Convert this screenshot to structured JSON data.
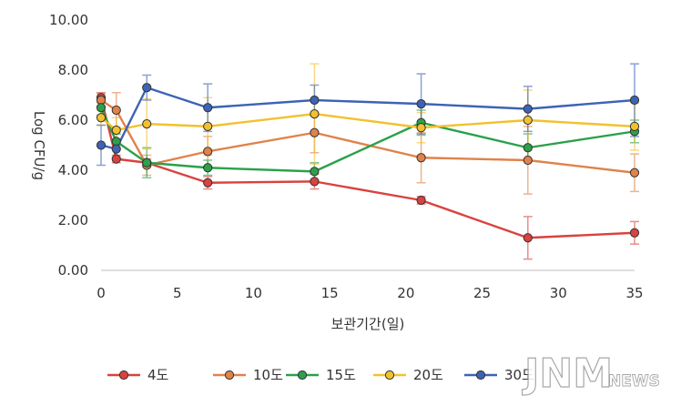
{
  "chart_data": {
    "type": "line",
    "title": "",
    "xlabel": "보관기간(일)",
    "ylabel": "Log CFU/g",
    "xlim": [
      0,
      35
    ],
    "ylim": [
      0,
      10
    ],
    "x_ticks": [
      0,
      5,
      10,
      15,
      20,
      25,
      30,
      35
    ],
    "y_ticks": [
      "0.00",
      "2.00",
      "4.00",
      "6.00",
      "8.00",
      "10.00"
    ],
    "grid": false,
    "legend_position": "bottom",
    "series": [
      {
        "name": "4도",
        "color": "#d9423f",
        "x": [
          0,
          1,
          3,
          7,
          14,
          21,
          28,
          35
        ],
        "y": [
          6.9,
          4.45,
          4.3,
          3.5,
          3.55,
          2.8,
          1.3,
          1.5
        ],
        "err": [
          0.2,
          0.15,
          0.15,
          0.25,
          0.3,
          0.15,
          0.85,
          0.45
        ]
      },
      {
        "name": "10도",
        "color": "#e0824a",
        "x": [
          0,
          1,
          3,
          7,
          14,
          21,
          28,
          35
        ],
        "y": [
          6.8,
          6.4,
          4.2,
          4.75,
          5.5,
          4.5,
          4.4,
          3.9
        ],
        "err": [
          0.25,
          0.7,
          0.4,
          0.6,
          0.8,
          1.0,
          1.35,
          0.75
        ]
      },
      {
        "name": "15도",
        "color": "#2aa14a",
        "x": [
          0,
          1,
          3,
          7,
          14,
          21,
          28,
          35
        ],
        "y": [
          6.5,
          5.15,
          4.3,
          4.1,
          3.95,
          5.9,
          4.9,
          5.55
        ],
        "err": [
          0.3,
          0.3,
          0.6,
          0.3,
          0.35,
          0.5,
          0.55,
          0.45
        ]
      },
      {
        "name": "20도",
        "color": "#f2c12e",
        "x": [
          0,
          1,
          3,
          7,
          14,
          21,
          28,
          35
        ],
        "y": [
          6.1,
          5.6,
          5.85,
          5.75,
          6.25,
          5.7,
          6.0,
          5.75
        ],
        "err": [
          0.3,
          0.5,
          1.0,
          1.15,
          2.0,
          0.6,
          1.2,
          0.95
        ]
      },
      {
        "name": "30도",
        "color": "#3d63b5",
        "x": [
          0,
          1,
          3,
          7,
          14,
          21,
          28,
          35
        ],
        "y": [
          5.0,
          4.85,
          7.3,
          6.5,
          6.8,
          6.65,
          6.45,
          6.8
        ],
        "err": [
          0.8,
          0.35,
          0.5,
          0.95,
          0.6,
          1.2,
          0.9,
          1.45
        ]
      }
    ]
  },
  "watermark": {
    "main": "JNM",
    "sub": "NEWS"
  }
}
